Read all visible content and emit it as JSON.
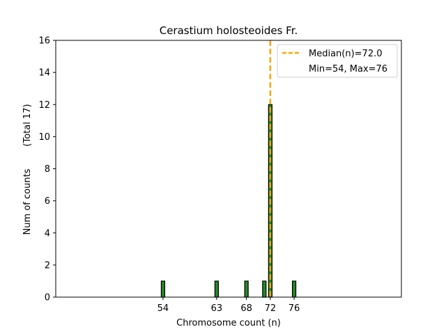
{
  "chart_data": {
    "type": "bar",
    "title": "Cerastium holosteoides Fr.",
    "xlabel": "Chromosome count (n)",
    "ylabel": "Num of counts",
    "ylabel_total": "(Total 17)",
    "xlim": [
      36,
      94
    ],
    "ylim": [
      0,
      16
    ],
    "yticks": [
      0,
      2,
      4,
      6,
      8,
      10,
      12,
      14,
      16
    ],
    "xticks": [
      54,
      63,
      68,
      72,
      76
    ],
    "xtick_labels": [
      "54",
      "63",
      "68",
      "72",
      "76"
    ],
    "bars": [
      {
        "x": 54,
        "count": 1
      },
      {
        "x": 63,
        "count": 1
      },
      {
        "x": 68,
        "count": 1
      },
      {
        "x": 71,
        "count": 1
      },
      {
        "x": 72,
        "count": 12
      },
      {
        "x": 76,
        "count": 1
      }
    ],
    "bar_color": "#228B22",
    "median": 72.0,
    "median_color": "#FFA500",
    "legend": {
      "median_label": "Median(n)=72.0",
      "range_label": "Min=54, Max=76",
      "position": "top-right"
    }
  }
}
